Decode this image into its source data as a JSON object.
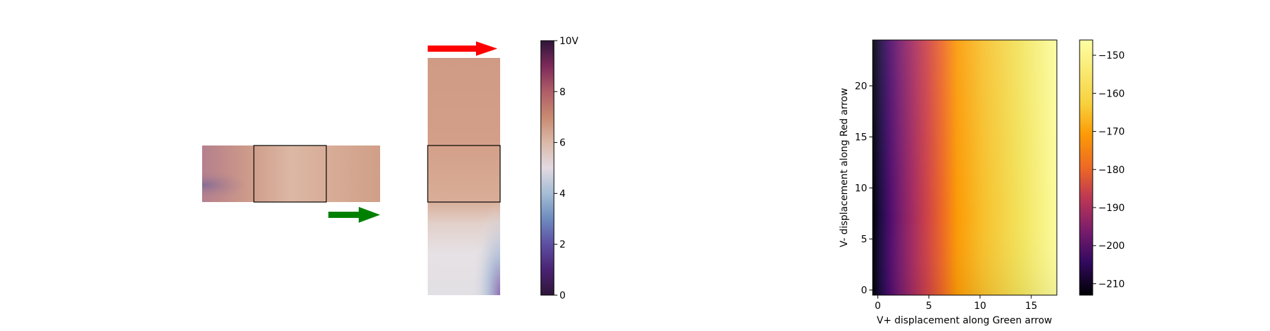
{
  "chart_data": [
    {
      "type": "heatmap",
      "title": "",
      "description_source": "left panel: horizontal and vertical potential-field strips with a voltage colorbar",
      "horizontal_arrow_color": "#008000",
      "vertical_arrow_color": "#ff0000",
      "colorbar": {
        "colormap": "twilight_shifted",
        "range": [
          0,
          10
        ],
        "ticks": [
          0,
          2,
          4,
          6,
          8,
          10
        ],
        "tick_labels": [
          "0",
          "2",
          "4",
          "6",
          "8",
          "10V"
        ]
      }
    },
    {
      "type": "heatmap",
      "title": "",
      "xlabel": "V+ displacement along Green arrow",
      "ylabel": "V- displacement along Red arrow",
      "xlim": [
        -0.5,
        17.5
      ],
      "ylim": [
        -0.5,
        24.5
      ],
      "xticks": [
        0,
        5,
        10,
        15
      ],
      "yticks": [
        0,
        5,
        10,
        15,
        20
      ],
      "colormap": "inferno",
      "colorbar": {
        "range": [
          -213,
          -146
        ],
        "ticks": [
          -150,
          -160,
          -170,
          -180,
          -190,
          -200,
          -210
        ],
        "tick_labels": [
          "−150",
          "−160",
          "−170",
          "−180",
          "−190",
          "−200",
          "−210"
        ]
      }
    }
  ]
}
